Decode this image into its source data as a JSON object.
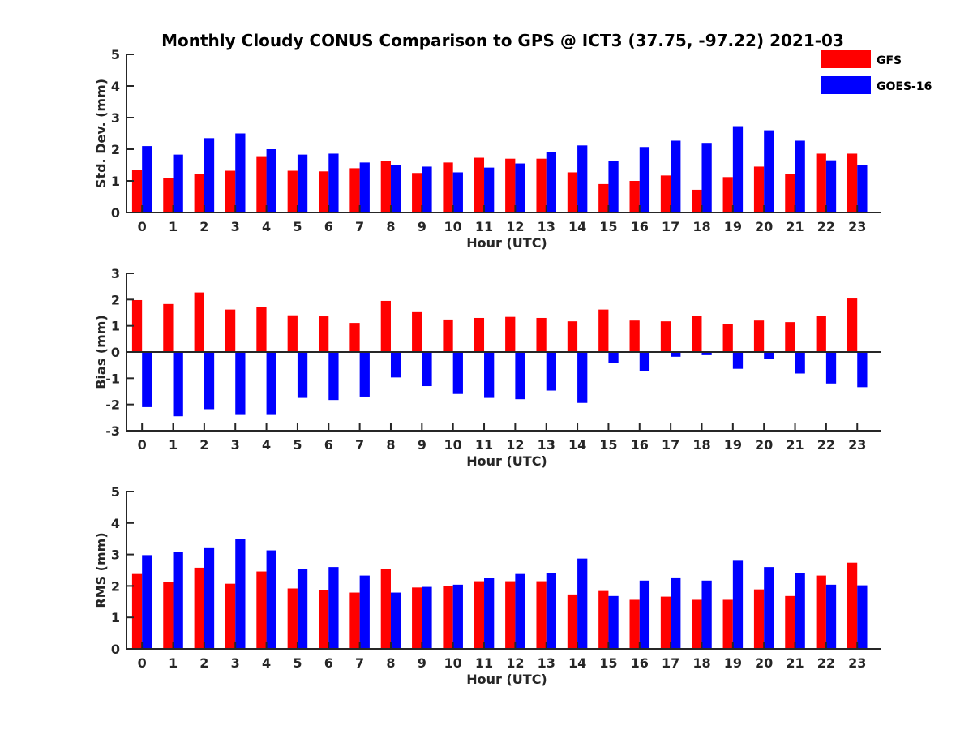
{
  "chart_data": {
    "title": "Monthly Cloudy CONUS Comparison to GPS @ ICT3 (37.75, -97.22) 2021-03",
    "legend": [
      {
        "name": "GFS",
        "color": "#ff0000"
      },
      {
        "name": "GOES-16",
        "color": "#0000ff"
      }
    ],
    "legend_position": "top-right",
    "panels": [
      {
        "type": "bar",
        "xlabel": "Hour (UTC)",
        "ylabel": "Std. Dev. (mm)",
        "categories": [
          "0",
          "1",
          "2",
          "3",
          "4",
          "5",
          "6",
          "7",
          "8",
          "9",
          "10",
          "11",
          "12",
          "13",
          "14",
          "15",
          "16",
          "17",
          "18",
          "19",
          "20",
          "21",
          "22",
          "23"
        ],
        "ylim": [
          0,
          5
        ],
        "yticks": [
          "0",
          "1",
          "2",
          "3",
          "4",
          "5"
        ],
        "series": [
          {
            "name": "GFS",
            "values": [
              1.35,
              1.1,
              1.22,
              1.32,
              1.78,
              1.32,
              1.3,
              1.4,
              1.63,
              1.25,
              1.58,
              1.73,
              1.7,
              1.7,
              1.27,
              0.9,
              1.0,
              1.17,
              0.72,
              1.12,
              1.45,
              1.22,
              1.86,
              1.86
            ]
          },
          {
            "name": "GOES-16",
            "values": [
              2.1,
              1.83,
              2.35,
              2.5,
              2.0,
              1.83,
              1.86,
              1.58,
              1.5,
              1.45,
              1.27,
              1.42,
              1.55,
              1.92,
              2.12,
              1.63,
              2.07,
              2.27,
              2.2,
              2.73,
              2.6,
              2.27,
              1.65,
              1.5
            ]
          }
        ]
      },
      {
        "type": "bar",
        "xlabel": "Hour (UTC)",
        "ylabel": "Bias (mm)",
        "categories": [
          "0",
          "1",
          "2",
          "3",
          "4",
          "5",
          "6",
          "7",
          "8",
          "9",
          "10",
          "11",
          "12",
          "13",
          "14",
          "15",
          "16",
          "17",
          "18",
          "19",
          "20",
          "21",
          "22",
          "23"
        ],
        "ylim": [
          -3,
          3
        ],
        "yticks": [
          "-3",
          "-2",
          "-1",
          "0",
          "1",
          "2",
          "3"
        ],
        "series": [
          {
            "name": "GFS",
            "values": [
              1.98,
              1.83,
              2.27,
              1.62,
              1.72,
              1.4,
              1.36,
              1.11,
              1.95,
              1.52,
              1.24,
              1.3,
              1.34,
              1.3,
              1.17,
              1.62,
              1.2,
              1.17,
              1.39,
              1.08,
              1.2,
              1.14,
              1.39,
              2.04
            ]
          },
          {
            "name": "GOES-16",
            "values": [
              -2.1,
              -2.45,
              -2.18,
              -2.4,
              -2.4,
              -1.75,
              -1.83,
              -1.7,
              -0.97,
              -1.3,
              -1.6,
              -1.75,
              -1.8,
              -1.47,
              -1.94,
              -0.42,
              -0.72,
              -0.18,
              -0.12,
              -0.64,
              -0.27,
              -0.82,
              -1.2,
              -1.34
            ]
          }
        ]
      },
      {
        "type": "bar",
        "xlabel": "Hour (UTC)",
        "ylabel": "RMS (mm)",
        "categories": [
          "0",
          "1",
          "2",
          "3",
          "4",
          "5",
          "6",
          "7",
          "8",
          "9",
          "10",
          "11",
          "12",
          "13",
          "14",
          "15",
          "16",
          "17",
          "18",
          "19",
          "20",
          "21",
          "22",
          "23"
        ],
        "ylim": [
          0,
          5
        ],
        "yticks": [
          "0",
          "1",
          "2",
          "3",
          "4",
          "5"
        ],
        "series": [
          {
            "name": "GFS",
            "values": [
              2.38,
              2.12,
              2.58,
              2.07,
              2.46,
              1.92,
              1.86,
              1.79,
              2.54,
              1.95,
              1.99,
              2.15,
              2.15,
              2.15,
              1.73,
              1.84,
              1.56,
              1.66,
              1.56,
              1.56,
              1.89,
              1.68,
              2.33,
              2.74
            ]
          },
          {
            "name": "GOES-16",
            "values": [
              2.98,
              3.07,
              3.2,
              3.48,
              3.13,
              2.54,
              2.6,
              2.33,
              1.79,
              1.97,
              2.04,
              2.25,
              2.38,
              2.4,
              2.87,
              1.68,
              2.17,
              2.27,
              2.17,
              2.8,
              2.6,
              2.4,
              2.04,
              2.02
            ]
          }
        ]
      }
    ]
  }
}
